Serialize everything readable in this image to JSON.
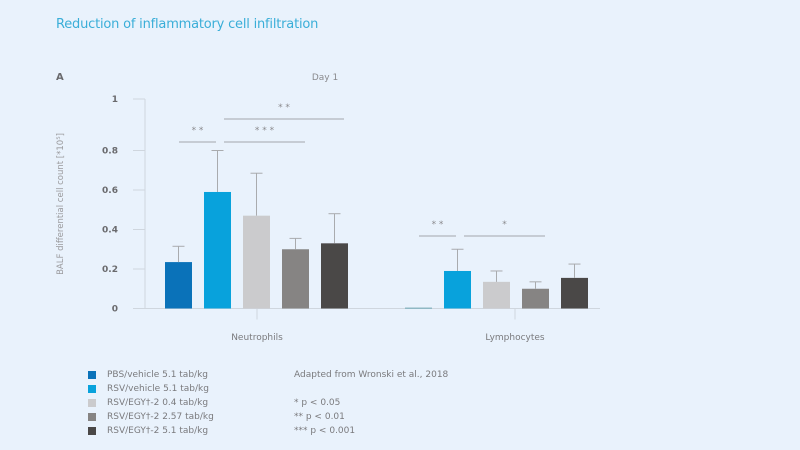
{
  "title": "Reduction of inflammatory cell infiltration",
  "panel_label": "A",
  "chart_data": {
    "type": "bar",
    "title": "Day 1",
    "xlabel": "",
    "ylabel": "BALF differential cell count [*10⁵]",
    "ylim": [
      0,
      1
    ],
    "yticks": [
      "0",
      "0.2",
      "0.4",
      "0.6",
      "0.8",
      "1"
    ],
    "grid": false,
    "categories": [
      "Neutrophils",
      "Lymphocytes"
    ],
    "series": [
      {
        "name": "PBS/vehicle 5.1 tab/kg",
        "color": "#0a72b9",
        "values": [
          0.235,
          0.005
        ],
        "error_upper": [
          0.315,
          null
        ]
      },
      {
        "name": "RSV/vehicle 5.1 tab/kg",
        "color": "#08a2dc",
        "values": [
          0.59,
          0.19
        ],
        "error_upper": [
          0.8,
          0.3
        ]
      },
      {
        "name": "RSV/EGY†-2 0.4 tab/kg",
        "color": "#cbcbcd",
        "values": [
          0.47,
          0.135
        ],
        "error_upper": [
          0.685,
          0.19
        ]
      },
      {
        "name": "RSV/EGY†-2 2.57 tab/kg",
        "color": "#868483",
        "values": [
          0.3,
          0.1
        ],
        "error_upper": [
          0.355,
          0.135
        ]
      },
      {
        "name": "RSV/EGY†-2 5.1 tab/kg",
        "color": "#4a4847",
        "values": [
          0.33,
          0.155
        ],
        "error_upper": [
          0.48,
          0.225
        ]
      }
    ],
    "significance": [
      {
        "category": "Neutrophils",
        "from_series": 0,
        "to_series": 1,
        "label": "* *"
      },
      {
        "category": "Neutrophils",
        "from_series": 1,
        "to_series": 3,
        "label": "* * *"
      },
      {
        "category": "Neutrophils",
        "from_series": 1,
        "to_series": 4,
        "label": "* *"
      },
      {
        "category": "Lymphocytes",
        "from_series": 0,
        "to_series": 1,
        "label": "* *"
      },
      {
        "category": "Lymphocytes",
        "from_series": 1,
        "to_series": 3,
        "label": "*"
      }
    ],
    "legend_position": "bottom-left"
  },
  "legend_items": [
    {
      "label": "PBS/vehicle 5.1 tab/kg",
      "color": "#0a72b9"
    },
    {
      "label": "RSV/vehicle 5.1 tab/kg",
      "color": "#08a2dc"
    },
    {
      "label": "RSV/EGY†-2 0.4 tab/kg",
      "color": "#cbcbcd"
    },
    {
      "label": "RSV/EGY†-2 2.57 tab/kg",
      "color": "#868483"
    },
    {
      "label": "RSV/EGY†-2 5.1 tab/kg",
      "color": "#4a4847"
    }
  ],
  "notes": {
    "source": "Adapted from Wronski et al., 2018",
    "p1": "* p < 0.05",
    "p2": "** p < 0.01",
    "p3": "*** p < 0.001"
  }
}
